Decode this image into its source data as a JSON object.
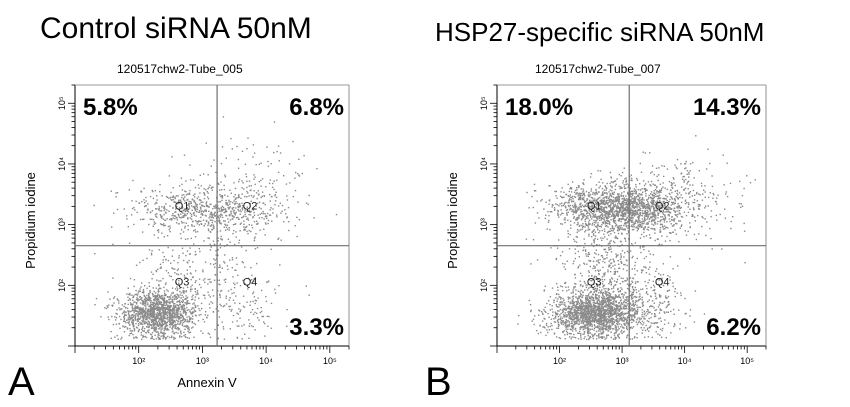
{
  "panels": [
    {
      "letter": "A",
      "title": "Control siRNA 50nM",
      "subtitle": "120517chw2-Tube_005",
      "ylabel": "Propidium iodine",
      "xlabel": "Annexin V",
      "percentages": {
        "Q1": "5.8%",
        "Q2": "6.8%",
        "Q3": "",
        "Q4": "3.3%"
      }
    },
    {
      "letter": "B",
      "title": "HSP27-specific siRNA 50nM",
      "subtitle": "120517chw2-Tube_007",
      "ylabel": "Propidium iodine",
      "xlabel": "",
      "percentages": {
        "Q1": "18.0%",
        "Q2": "14.3%",
        "Q3": "",
        "Q4": "6.2%"
      }
    }
  ],
  "quadrant_labels": [
    "Q1",
    "Q2",
    "Q3",
    "Q4"
  ],
  "tick_labels": [
    "10²",
    "10³",
    "10⁴",
    "10⁵"
  ],
  "chart_data": [
    {
      "type": "scatter",
      "title": "Control siRNA 50nM",
      "subtitle": "120517chw2-Tube_005",
      "xlabel": "Annexin V",
      "ylabel": "Propidium iodine",
      "x_scale": "log",
      "y_scale": "log",
      "xlim": [
        10,
        200000
      ],
      "ylim": [
        10,
        200000
      ],
      "xticks": [
        100,
        1000,
        10000,
        100000
      ],
      "yticks": [
        100,
        1000,
        10000,
        100000
      ],
      "gate_x": 1700,
      "gate_y": 450,
      "quadrant_percent": {
        "Q1": 5.8,
        "Q2": 6.8,
        "Q4": 3.3
      },
      "color": "#8a8a8a"
    },
    {
      "type": "scatter",
      "title": "HSP27-specific siRNA 50nM",
      "subtitle": "120517chw2-Tube_007",
      "xlabel": "",
      "ylabel": "Propidium iodine",
      "x_scale": "log",
      "y_scale": "log",
      "xlim": [
        10,
        200000
      ],
      "ylim": [
        10,
        200000
      ],
      "xticks": [
        100,
        1000,
        10000,
        100000
      ],
      "yticks": [
        100,
        1000,
        10000,
        100000
      ],
      "gate_x": 1300,
      "gate_y": 450,
      "quadrant_percent": {
        "Q1": 18.0,
        "Q2": 14.3,
        "Q4": 6.2
      },
      "color": "#8a8a8a"
    }
  ]
}
